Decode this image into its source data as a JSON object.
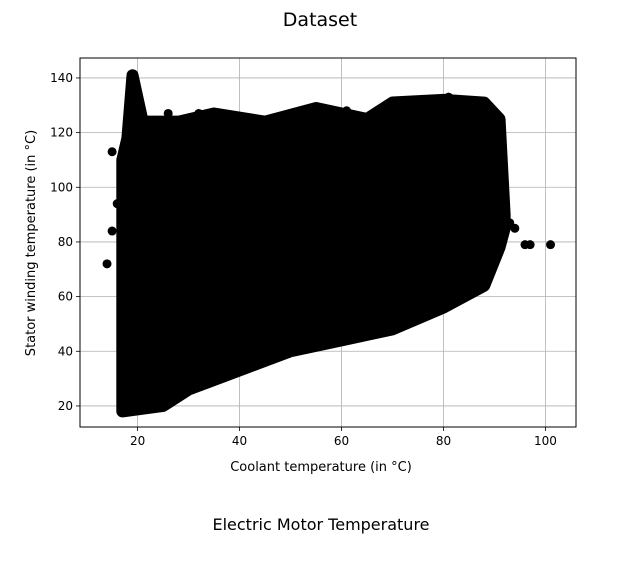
{
  "figure": {
    "title": "Dataset",
    "caption": "Electric Motor Temperature"
  },
  "chart_data": {
    "type": "scatter",
    "title": "Dataset",
    "xlabel": "Coolant temperature (in °C)",
    "ylabel": "Stator winding temperature (in °C)",
    "xlim": [
      8.7,
      106.0
    ],
    "ylim": [
      12.3,
      147.3
    ],
    "xticks": [
      20,
      40,
      60,
      80,
      100
    ],
    "yticks": [
      20,
      40,
      60,
      80,
      100,
      120,
      140
    ],
    "grid": true,
    "marker_color": "#000000",
    "series": [
      {
        "region": {
          "lower_boundary": [
            [
              17,
              18
            ],
            [
              25,
              20
            ],
            [
              30,
              26
            ],
            [
              40,
              33
            ],
            [
              50,
              40
            ],
            [
              60,
              44
            ],
            [
              70,
              48
            ],
            [
              80,
              56
            ],
            [
              88,
              64
            ],
            [
              91,
              78
            ],
            [
              92,
              85
            ]
          ],
          "upper_boundary": [
            [
              17,
              22
            ],
            [
              17,
              110
            ],
            [
              18,
              118
            ],
            [
              19,
              141
            ],
            [
              21,
              124
            ],
            [
              28,
              124
            ],
            [
              35,
              127
            ],
            [
              45,
              124
            ],
            [
              55,
              129
            ],
            [
              65,
              125
            ],
            [
              70,
              131
            ],
            [
              80,
              132
            ],
            [
              88,
              131
            ],
            [
              91,
              125
            ],
            [
              92,
              90
            ]
          ]
        },
        "outliers": [
          [
            14,
            72
          ],
          [
            15,
            113
          ],
          [
            16,
            94
          ],
          [
            15,
            84
          ],
          [
            17,
            102
          ],
          [
            101,
            79
          ],
          [
            96,
            79
          ],
          [
            97,
            79
          ],
          [
            93,
            87
          ],
          [
            94,
            85
          ],
          [
            88,
            67
          ],
          [
            26,
            127
          ],
          [
            32,
            127
          ],
          [
            56,
            129
          ],
          [
            61,
            128
          ],
          [
            81,
            133
          ]
        ]
      }
    ]
  }
}
